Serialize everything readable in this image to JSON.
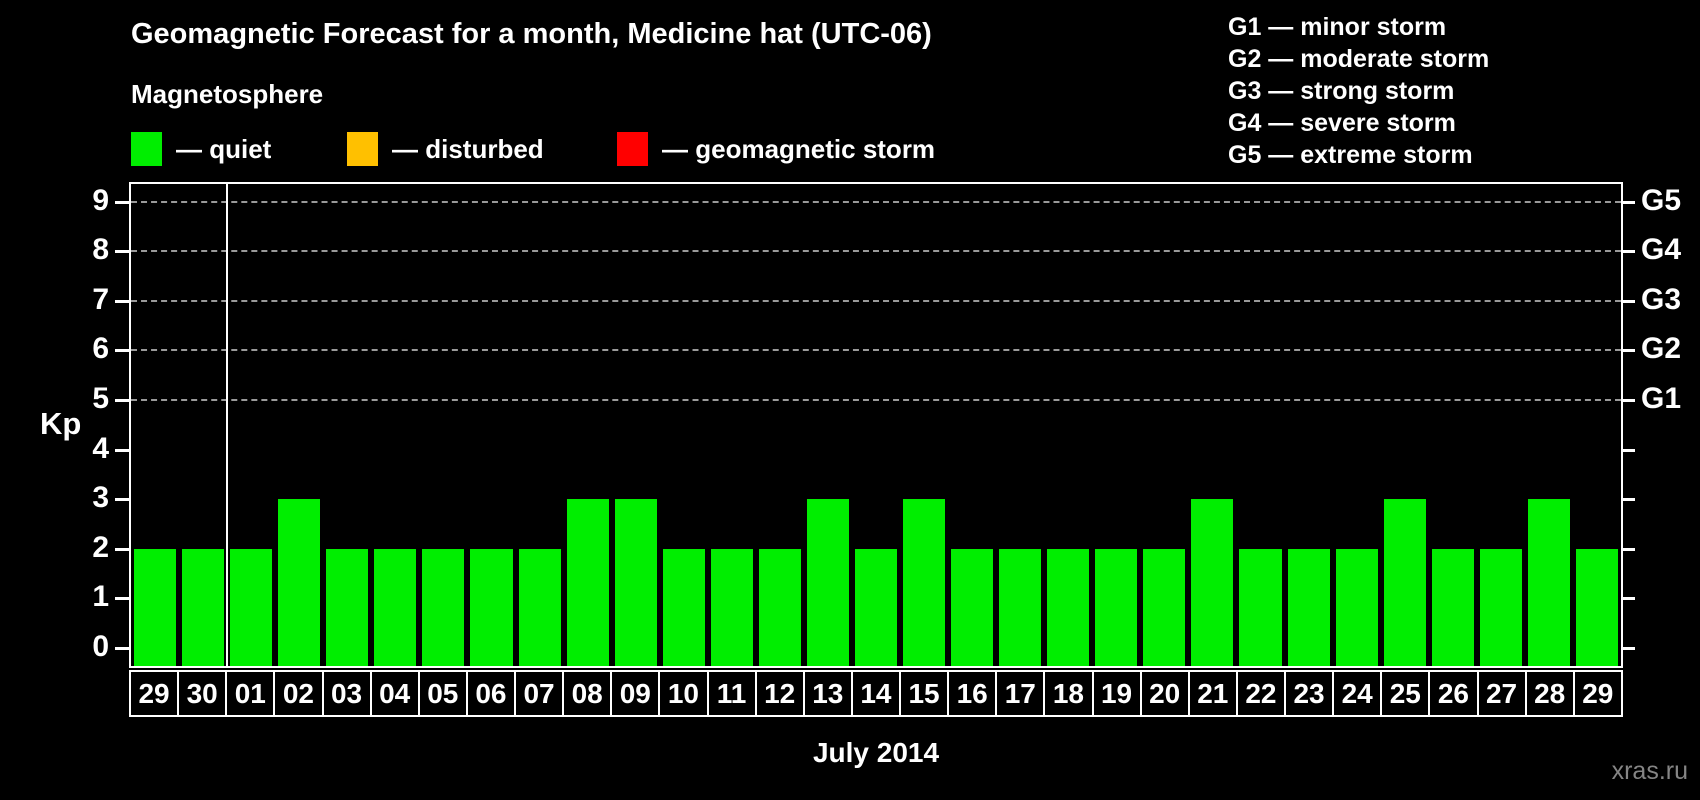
{
  "title": "Geomagnetic Forecast for a month, Medicine hat (UTC-06)",
  "subtitle": "Magnetosphere",
  "legend": {
    "items": [
      {
        "name": "quiet",
        "label": "— quiet",
        "color": "#00ee00"
      },
      {
        "name": "disturbed",
        "label": "— disturbed",
        "color": "#ffc000"
      },
      {
        "name": "geomagnetic-storm",
        "label": "— geomagnetic storm",
        "color": "#ff0000"
      }
    ]
  },
  "storm_legend": {
    "items": [
      "G1 — minor storm",
      "G2 — moderate storm",
      "G3 — strong storm",
      "G4 — severe storm",
      "G5 — extreme storm"
    ]
  },
  "chart_data": {
    "type": "bar",
    "title": "Geomagnetic Forecast for a month, Medicine hat (UTC-06)",
    "categories": [
      "29",
      "30",
      "01",
      "02",
      "03",
      "04",
      "05",
      "06",
      "07",
      "08",
      "09",
      "10",
      "11",
      "12",
      "13",
      "14",
      "15",
      "16",
      "17",
      "18",
      "19",
      "20",
      "21",
      "22",
      "23",
      "24",
      "25",
      "26",
      "27",
      "28",
      "29"
    ],
    "values": [
      2,
      2,
      2,
      3,
      2,
      2,
      2,
      2,
      2,
      3,
      3,
      2,
      2,
      2,
      3,
      2,
      3,
      2,
      2,
      2,
      2,
      2,
      3,
      2,
      2,
      2,
      3,
      2,
      2,
      3,
      2
    ],
    "xlabel": "July 2014",
    "ylabel": "Kp",
    "ylim": [
      0,
      9
    ],
    "yticks": [
      0,
      1,
      2,
      3,
      4,
      5,
      6,
      7,
      8,
      9
    ],
    "grid_levels": [
      5,
      6,
      7,
      8,
      9
    ],
    "grid_style": "dashed",
    "right_axis": [
      {
        "kp": 5,
        "label": "G1"
      },
      {
        "kp": 6,
        "label": "G2"
      },
      {
        "kp": 7,
        "label": "G3"
      },
      {
        "kp": 8,
        "label": "G4"
      },
      {
        "kp": 9,
        "label": "G5"
      }
    ],
    "bar_color": "#00ee00",
    "prev_month_days": 2,
    "legend_position": "top-left"
  },
  "watermark": "xras.ru"
}
